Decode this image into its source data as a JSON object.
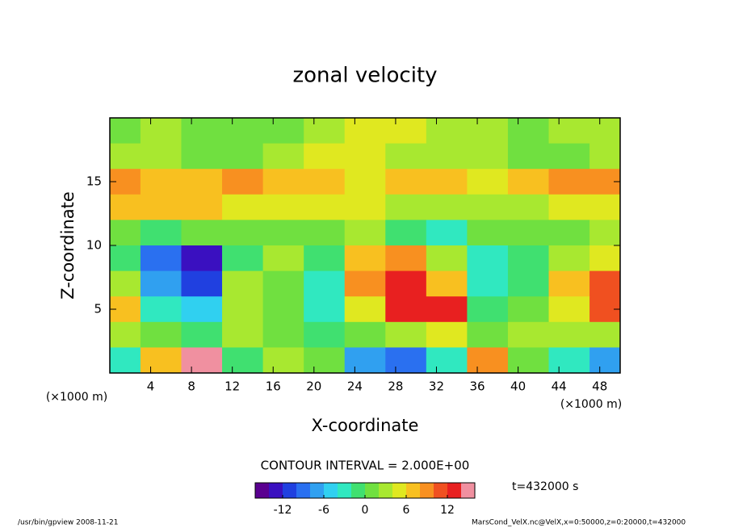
{
  "chart_data": {
    "type": "contour",
    "title": "zonal velocity",
    "xlabel": "X-coordinate",
    "ylabel": "Z-coordinate",
    "x_unit": "(×1000 m)",
    "x_unit_right": "(×1000 m)",
    "interval_text": "CONTOUR INTERVAL = 2.000E+00",
    "time_text": "t=432000 s",
    "footer_left": "/usr/bin/gpview  2008-11-21",
    "footer_right": "MarsCond_VelX.nc@VelX,x=0:50000,z=0:20000,t=432000",
    "xlim": [
      0,
      50
    ],
    "ylim": [
      0,
      20
    ],
    "xticks": [
      4,
      8,
      12,
      16,
      20,
      24,
      28,
      32,
      36,
      40,
      44,
      48
    ],
    "yticks": [
      5,
      10,
      15
    ],
    "x": [
      1,
      5,
      9,
      13,
      17,
      21,
      25,
      29,
      33,
      37,
      41,
      45,
      49
    ],
    "y": [
      19,
      17,
      15,
      13,
      11,
      9,
      7,
      5,
      3,
      1
    ],
    "z": [
      [
        0,
        2,
        0,
        0,
        0,
        2,
        4,
        4,
        2,
        2,
        0,
        2,
        2
      ],
      [
        2,
        2,
        0,
        0,
        2,
        4,
        4,
        2,
        2,
        2,
        0,
        0,
        2
      ],
      [
        8,
        6,
        6,
        8,
        6,
        6,
        4,
        6,
        6,
        4,
        6,
        8,
        8
      ],
      [
        6,
        6,
        6,
        4,
        4,
        4,
        4,
        2,
        2,
        2,
        2,
        4,
        4
      ],
      [
        0,
        -2,
        0,
        0,
        0,
        0,
        2,
        -2,
        -4,
        0,
        0,
        0,
        2
      ],
      [
        -2,
        -10,
        -14,
        -2,
        2,
        -2,
        6,
        8,
        2,
        -4,
        -2,
        2,
        4
      ],
      [
        2,
        -8,
        -12,
        2,
        0,
        -4,
        8,
        12,
        6,
        -4,
        -2,
        6,
        10
      ],
      [
        6,
        -4,
        -6,
        2,
        0,
        -4,
        4,
        12,
        12,
        -2,
        0,
        4,
        10
      ],
      [
        2,
        0,
        -2,
        2,
        0,
        -2,
        0,
        2,
        4,
        0,
        2,
        2,
        2
      ],
      [
        -4,
        6,
        14,
        -2,
        2,
        0,
        -8,
        -10,
        -4,
        8,
        0,
        -4,
        -8
      ]
    ],
    "colorbar_lim": [
      -16,
      16
    ],
    "colorbar_ticks": [
      -12,
      -6,
      0,
      6,
      12
    ],
    "colors": [
      "#5a0090",
      "#3a10c0",
      "#2040e0",
      "#2a70f0",
      "#30a0f0",
      "#30d0f0",
      "#30e8c0",
      "#40e070",
      "#70e040",
      "#a8e830",
      "#e0e820",
      "#f8c020",
      "#f89020",
      "#f05020",
      "#e82020",
      "#f090a0"
    ]
  }
}
